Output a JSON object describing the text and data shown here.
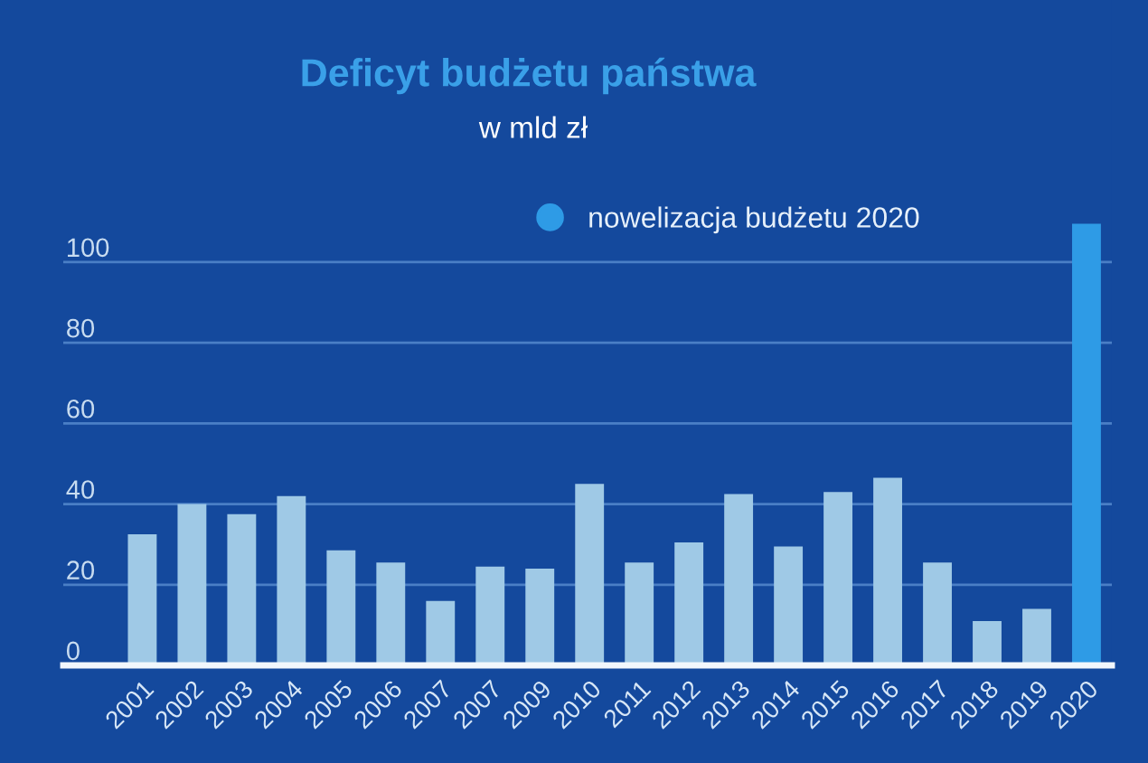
{
  "chart_data": {
    "type": "bar",
    "title": "Deficyt budżetu państwa",
    "subtitle": "w mld zł",
    "categories": [
      "2001",
      "2002",
      "2003",
      "2004",
      "2005",
      "2006",
      "2007",
      "2007",
      "2009",
      "2010",
      "2011",
      "2012",
      "2013",
      "2014",
      "2015",
      "2016",
      "2017",
      "2018",
      "2019",
      "2020"
    ],
    "series": [
      {
        "color": "#9fc9e6",
        "values": [
          32.5,
          40,
          37.5,
          42,
          28.5,
          25.5,
          16,
          24.5,
          24,
          45,
          25.5,
          30.5,
          42.5,
          29.5,
          43,
          46.5,
          25.5,
          11,
          14,
          null
        ]
      },
      {
        "name": "nowelizacja budżetu 2020",
        "color": "#2e9be6",
        "values": [
          null,
          null,
          null,
          null,
          null,
          null,
          null,
          null,
          null,
          null,
          null,
          null,
          null,
          null,
          null,
          null,
          null,
          null,
          null,
          109.5
        ]
      }
    ],
    "ylim": [
      0,
      165
    ],
    "yticks": [
      0,
      20,
      40,
      60,
      80,
      100
    ],
    "grid": "y",
    "legend": "top right"
  }
}
